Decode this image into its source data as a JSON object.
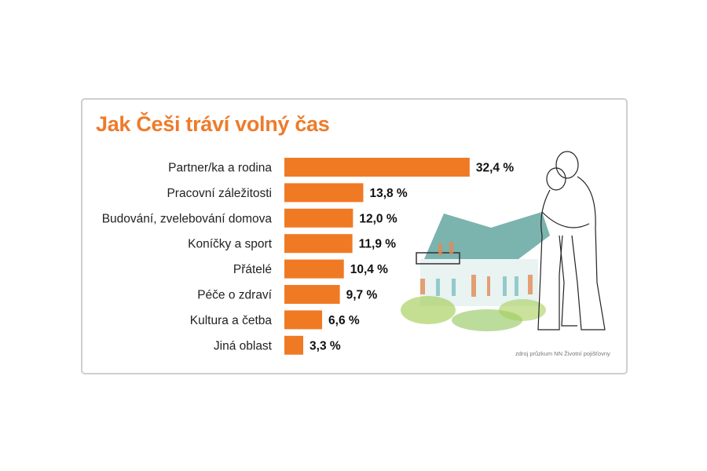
{
  "chart_data": {
    "type": "bar",
    "orientation": "horizontal",
    "title": "Jak Češi tráví volný čas",
    "categories": [
      "Partner/ka a rodina",
      "Pracovní záležitosti",
      "Budování, zvelebování domova",
      "Koníčky a sport",
      "Přátelé",
      "Péče o zdraví",
      "Kultura a četba",
      "Jiná oblast"
    ],
    "values": [
      32.4,
      13.8,
      12.0,
      11.9,
      10.4,
      9.7,
      6.6,
      3.3
    ],
    "value_labels": [
      "32,4 %",
      "13,8 %",
      "12,0 %",
      "11,9 %",
      "10,4 %",
      "9,7 %",
      "6,6 %",
      "3,3 %"
    ],
    "unit": "%",
    "bar_color": "#f07a24",
    "grid": false,
    "source": "zdroj průzkum NN Životní pojišťovny"
  }
}
